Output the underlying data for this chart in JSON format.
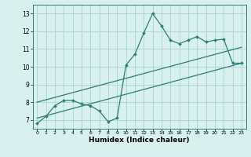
{
  "xlabel": "Humidex (Indice chaleur)",
  "bg_color": "#d8f0ee",
  "grid_color": "#b0d8d4",
  "line_color": "#2d7d78",
  "xlim": [
    -0.5,
    23.5
  ],
  "ylim": [
    6.5,
    13.5
  ],
  "xticks": [
    0,
    1,
    2,
    3,
    4,
    5,
    6,
    7,
    8,
    9,
    10,
    11,
    12,
    13,
    14,
    15,
    16,
    17,
    18,
    19,
    20,
    21,
    22,
    23
  ],
  "yticks": [
    7,
    8,
    9,
    10,
    11,
    12,
    13
  ],
  "line1_x": [
    0,
    1,
    2,
    3,
    4,
    5,
    6,
    7,
    8,
    9,
    10,
    11,
    12,
    13,
    14,
    15,
    16,
    17,
    18,
    19,
    20,
    21,
    22,
    23
  ],
  "line1_y": [
    6.8,
    7.2,
    7.8,
    8.1,
    8.1,
    7.9,
    7.8,
    7.5,
    6.9,
    7.1,
    10.1,
    10.7,
    11.9,
    13.0,
    12.3,
    11.5,
    11.3,
    11.5,
    11.7,
    11.4,
    11.5,
    11.55,
    10.2,
    10.2
  ],
  "line2_x": [
    0,
    23
  ],
  "line2_y": [
    7.1,
    10.2
  ],
  "line3_x": [
    0,
    23
  ],
  "line3_y": [
    8.0,
    11.1
  ]
}
